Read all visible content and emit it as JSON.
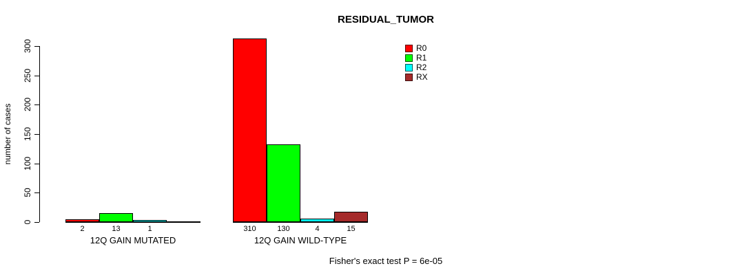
{
  "chart_data": {
    "type": "bar",
    "title": "RESIDUAL_TUMOR",
    "ylabel": "number of cases",
    "footer": "Fisher's exact test P = 6e-05",
    "ylim": [
      0,
      300
    ],
    "yticks": [
      0,
      50,
      100,
      150,
      200,
      250,
      300
    ],
    "grid": false,
    "legend_position": "top-right",
    "legend": [
      {
        "name": "R0",
        "color": "#ff0000"
      },
      {
        "name": "R1",
        "color": "#00ff00"
      },
      {
        "name": "R2",
        "color": "#00ffff"
      },
      {
        "name": "RX",
        "color": "#a52a2a"
      }
    ],
    "series_order": [
      "R0",
      "R1",
      "R2",
      "RX"
    ],
    "groups": [
      {
        "label": "12Q GAIN MUTATED",
        "values": [
          2,
          13,
          1,
          0
        ],
        "bar_labels": [
          "2",
          "13",
          "1",
          ""
        ]
      },
      {
        "label": "12Q GAIN WILD-TYPE",
        "values": [
          310,
          130,
          4,
          15
        ],
        "bar_labels": [
          "310",
          "130",
          "4",
          "15"
        ]
      }
    ]
  }
}
